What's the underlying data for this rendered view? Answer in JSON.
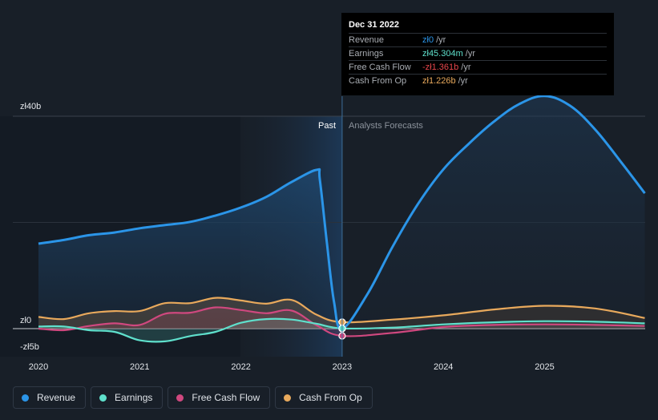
{
  "chart_data": {
    "type": "area",
    "title": "",
    "currency_axis": {
      "ticks": [
        {
          "value": 40,
          "label": "zł40b"
        },
        {
          "value": 0,
          "label": "zł0"
        },
        {
          "value": -5,
          "label": "-zł5b"
        }
      ],
      "ylim": [
        -5,
        40
      ],
      "unit": "billions PLN"
    },
    "x_ticks": [
      "2020",
      "2021",
      "2022",
      "2023",
      "2024",
      "2025"
    ],
    "xlim": [
      2019.79,
      2025.99
    ],
    "divider_x": 2023.0,
    "past_label": "Past",
    "forecast_label": "Analysts Forecasts",
    "series": [
      {
        "name": "Revenue",
        "color": "#2b95e8",
        "points": [
          [
            2020.0,
            16.0
          ],
          [
            2020.25,
            16.7
          ],
          [
            2020.5,
            17.6
          ],
          [
            2020.75,
            18.1
          ],
          [
            2021.0,
            18.9
          ],
          [
            2021.25,
            19.5
          ],
          [
            2021.5,
            20.1
          ],
          [
            2021.75,
            21.3
          ],
          [
            2022.0,
            22.8
          ],
          [
            2022.25,
            24.8
          ],
          [
            2022.5,
            27.6
          ],
          [
            2022.75,
            29.9
          ],
          [
            2022.78,
            28.0
          ],
          [
            2022.85,
            16.0
          ],
          [
            2022.92,
            5.0
          ],
          [
            2023.0,
            0.0
          ],
          [
            2023.25,
            6.5
          ],
          [
            2023.5,
            15.5
          ],
          [
            2023.75,
            23.5
          ],
          [
            2024.0,
            30.0
          ],
          [
            2024.25,
            34.8
          ],
          [
            2024.5,
            39.0
          ],
          [
            2024.75,
            42.3
          ],
          [
            2025.0,
            43.8
          ],
          [
            2025.25,
            42.0
          ],
          [
            2025.5,
            37.5
          ],
          [
            2025.75,
            31.5
          ],
          [
            2025.99,
            25.5
          ]
        ]
      },
      {
        "name": "Earnings",
        "color": "#5fe0cc",
        "points": [
          [
            2020.0,
            0.4
          ],
          [
            2020.25,
            0.4
          ],
          [
            2020.5,
            -0.3
          ],
          [
            2020.75,
            -0.6
          ],
          [
            2021.0,
            -2.2
          ],
          [
            2021.25,
            -2.4
          ],
          [
            2021.5,
            -1.4
          ],
          [
            2021.75,
            -0.6
          ],
          [
            2022.0,
            1.1
          ],
          [
            2022.25,
            1.8
          ],
          [
            2022.5,
            1.7
          ],
          [
            2022.75,
            0.9
          ],
          [
            2023.0,
            0.045
          ],
          [
            2023.5,
            0.2
          ],
          [
            2024.0,
            0.8
          ],
          [
            2024.5,
            1.2
          ],
          [
            2025.0,
            1.4
          ],
          [
            2025.5,
            1.3
          ],
          [
            2025.99,
            1.0
          ]
        ]
      },
      {
        "name": "Free Cash Flow",
        "color": "#d0487f",
        "points": [
          [
            2020.0,
            0.0
          ],
          [
            2020.25,
            -0.3
          ],
          [
            2020.5,
            0.5
          ],
          [
            2020.75,
            1.0
          ],
          [
            2021.0,
            0.7
          ],
          [
            2021.25,
            2.8
          ],
          [
            2021.5,
            3.0
          ],
          [
            2021.75,
            4.0
          ],
          [
            2022.0,
            3.5
          ],
          [
            2022.25,
            2.9
          ],
          [
            2022.5,
            3.4
          ],
          [
            2022.75,
            0.6
          ],
          [
            2023.0,
            -1.361
          ],
          [
            2023.5,
            -0.8
          ],
          [
            2024.0,
            0.3
          ],
          [
            2024.5,
            0.7
          ],
          [
            2025.0,
            0.8
          ],
          [
            2025.5,
            0.7
          ],
          [
            2025.99,
            0.5
          ]
        ]
      },
      {
        "name": "Cash From Op",
        "color": "#e8a95c",
        "points": [
          [
            2020.0,
            2.2
          ],
          [
            2020.25,
            1.8
          ],
          [
            2020.5,
            2.9
          ],
          [
            2020.75,
            3.3
          ],
          [
            2021.0,
            3.3
          ],
          [
            2021.25,
            4.8
          ],
          [
            2021.5,
            4.8
          ],
          [
            2021.75,
            5.8
          ],
          [
            2022.0,
            5.3
          ],
          [
            2022.25,
            4.7
          ],
          [
            2022.5,
            5.4
          ],
          [
            2022.75,
            2.6
          ],
          [
            2023.0,
            1.226
          ],
          [
            2023.5,
            1.7
          ],
          [
            2024.0,
            2.5
          ],
          [
            2024.5,
            3.6
          ],
          [
            2025.0,
            4.3
          ],
          [
            2025.5,
            3.8
          ],
          [
            2025.99,
            2.0
          ]
        ]
      }
    ],
    "highlight_date": "Dec 31 2022"
  },
  "tooltip": {
    "date": "Dec 31 2022",
    "rows": [
      {
        "label": "Revenue",
        "value": "zł0",
        "unit": "/yr",
        "color": "#2b95e8"
      },
      {
        "label": "Earnings",
        "value": "zł45.304m",
        "unit": "/yr",
        "color": "#5fe0cc"
      },
      {
        "label": "Free Cash Flow",
        "value": "-zł1.361b",
        "unit": "/yr",
        "color": "#e8464b"
      },
      {
        "label": "Cash From Op",
        "value": "zł1.226b",
        "unit": "/yr",
        "color": "#e8a95c"
      }
    ]
  },
  "legend": [
    {
      "label": "Revenue",
      "color": "#2b95e8"
    },
    {
      "label": "Earnings",
      "color": "#5fe0cc"
    },
    {
      "label": "Free Cash Flow",
      "color": "#d0487f"
    },
    {
      "label": "Cash From Op",
      "color": "#e8a95c"
    }
  ]
}
